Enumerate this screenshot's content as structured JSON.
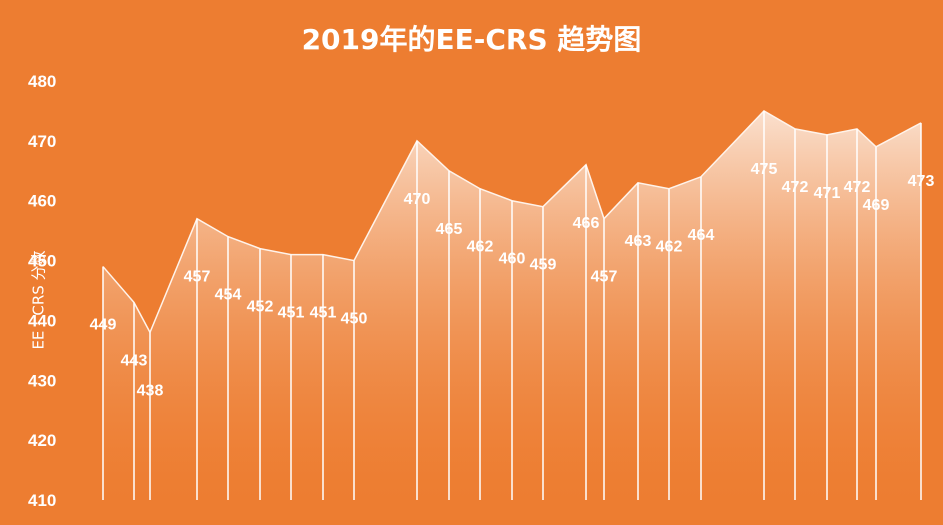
{
  "chart_data": {
    "type": "area",
    "title": "2019年的EE-CRS 趋势图",
    "ylabel": "EE - CRS 分数",
    "xlabel": "",
    "ylim": [
      410,
      480
    ],
    "yticks": [
      410,
      420,
      430,
      440,
      450,
      460,
      470,
      480
    ],
    "values": [
      449,
      443,
      438,
      457,
      454,
      452,
      451,
      451,
      450,
      470,
      465,
      462,
      460,
      459,
      466,
      457,
      463,
      462,
      464,
      475,
      472,
      471,
      472,
      469,
      473
    ],
    "grid": false,
    "legend": "none",
    "colors": {
      "background": "#ED7D31",
      "fill_top": "#FBE5D6",
      "fill_bottom": "#ED7D31",
      "line": "#FFFFFF",
      "text": "#FFFFFF"
    }
  }
}
